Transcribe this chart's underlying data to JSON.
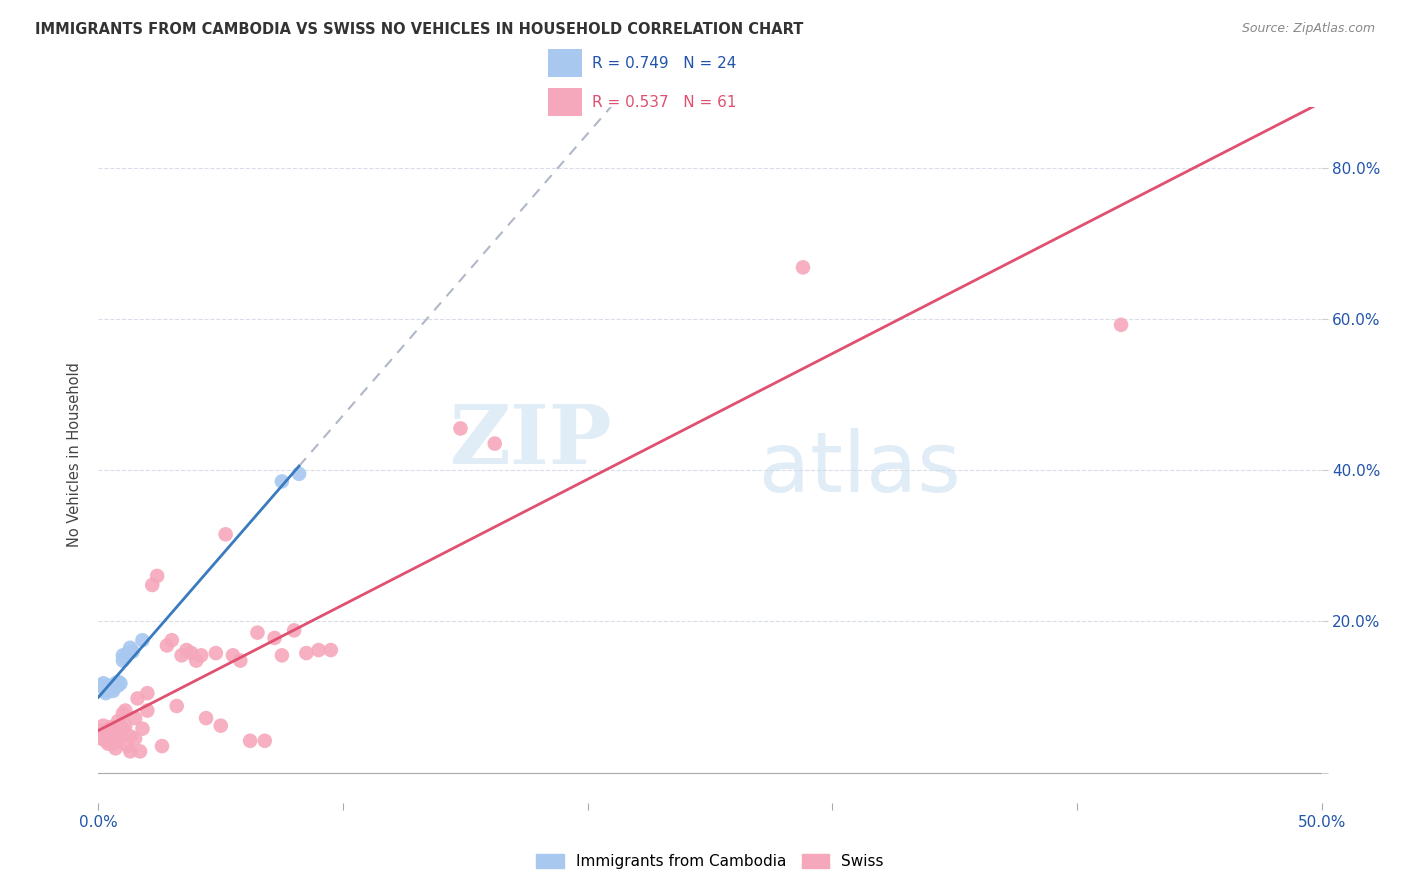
{
  "title": "IMMIGRANTS FROM CAMBODIA VS SWISS NO VEHICLES IN HOUSEHOLD CORRELATION CHART",
  "source": "Source: ZipAtlas.com",
  "ylabel": "No Vehicles in Household",
  "xlim": [
    0.0,
    0.5
  ],
  "ylim": [
    -0.04,
    0.88
  ],
  "legend1_label": "R = 0.749   N = 24",
  "legend2_label": "R = 0.537   N = 61",
  "legend_bottom1": "Immigrants from Cambodia",
  "legend_bottom2": "Swiss",
  "color_cambodia": "#a8c8f0",
  "color_swiss": "#f5a8bb",
  "trendline_cambodia_color": "#3a7abf",
  "trendline_swiss_color": "#e05070",
  "trendline_ext_color": "#b0b8c8",
  "watermark_zip": "ZIP",
  "watermark_atlas": "atlas",
  "background_color": "#ffffff",
  "grid_color": "#d8dde8",
  "cambodia_points": [
    [
      0.001,
      0.115
    ],
    [
      0.002,
      0.118
    ],
    [
      0.003,
      0.105
    ],
    [
      0.003,
      0.108
    ],
    [
      0.004,
      0.112
    ],
    [
      0.004,
      0.115
    ],
    [
      0.005,
      0.11
    ],
    [
      0.005,
      0.113
    ],
    [
      0.006,
      0.108
    ],
    [
      0.006,
      0.112
    ],
    [
      0.007,
      0.115
    ],
    [
      0.007,
      0.118
    ],
    [
      0.008,
      0.12
    ],
    [
      0.008,
      0.115
    ],
    [
      0.009,
      0.118
    ],
    [
      0.01,
      0.155
    ],
    [
      0.01,
      0.148
    ],
    [
      0.011,
      0.152
    ],
    [
      0.012,
      0.158
    ],
    [
      0.013,
      0.165
    ],
    [
      0.014,
      0.16
    ],
    [
      0.018,
      0.175
    ],
    [
      0.075,
      0.385
    ],
    [
      0.082,
      0.395
    ]
  ],
  "swiss_points": [
    [
      0.001,
      0.045
    ],
    [
      0.001,
      0.055
    ],
    [
      0.002,
      0.062
    ],
    [
      0.002,
      0.05
    ],
    [
      0.003,
      0.042
    ],
    [
      0.003,
      0.048
    ],
    [
      0.004,
      0.038
    ],
    [
      0.004,
      0.055
    ],
    [
      0.005,
      0.06
    ],
    [
      0.005,
      0.042
    ],
    [
      0.006,
      0.05
    ],
    [
      0.006,
      0.038
    ],
    [
      0.007,
      0.055
    ],
    [
      0.007,
      0.032
    ],
    [
      0.008,
      0.042
    ],
    [
      0.008,
      0.068
    ],
    [
      0.009,
      0.048
    ],
    [
      0.01,
      0.078
    ],
    [
      0.01,
      0.058
    ],
    [
      0.011,
      0.082
    ],
    [
      0.011,
      0.062
    ],
    [
      0.012,
      0.035
    ],
    [
      0.013,
      0.048
    ],
    [
      0.013,
      0.028
    ],
    [
      0.015,
      0.072
    ],
    [
      0.015,
      0.045
    ],
    [
      0.016,
      0.098
    ],
    [
      0.017,
      0.028
    ],
    [
      0.018,
      0.058
    ],
    [
      0.02,
      0.105
    ],
    [
      0.02,
      0.082
    ],
    [
      0.022,
      0.248
    ],
    [
      0.024,
      0.26
    ],
    [
      0.026,
      0.035
    ],
    [
      0.028,
      0.168
    ],
    [
      0.03,
      0.175
    ],
    [
      0.032,
      0.088
    ],
    [
      0.034,
      0.155
    ],
    [
      0.036,
      0.162
    ],
    [
      0.038,
      0.158
    ],
    [
      0.04,
      0.148
    ],
    [
      0.042,
      0.155
    ],
    [
      0.044,
      0.072
    ],
    [
      0.048,
      0.158
    ],
    [
      0.05,
      0.062
    ],
    [
      0.052,
      0.315
    ],
    [
      0.055,
      0.155
    ],
    [
      0.058,
      0.148
    ],
    [
      0.062,
      0.042
    ],
    [
      0.065,
      0.185
    ],
    [
      0.068,
      0.042
    ],
    [
      0.072,
      0.178
    ],
    [
      0.075,
      0.155
    ],
    [
      0.08,
      0.188
    ],
    [
      0.085,
      0.158
    ],
    [
      0.09,
      0.162
    ],
    [
      0.095,
      0.162
    ],
    [
      0.148,
      0.455
    ],
    [
      0.162,
      0.435
    ],
    [
      0.288,
      0.668
    ],
    [
      0.418,
      0.592
    ]
  ]
}
